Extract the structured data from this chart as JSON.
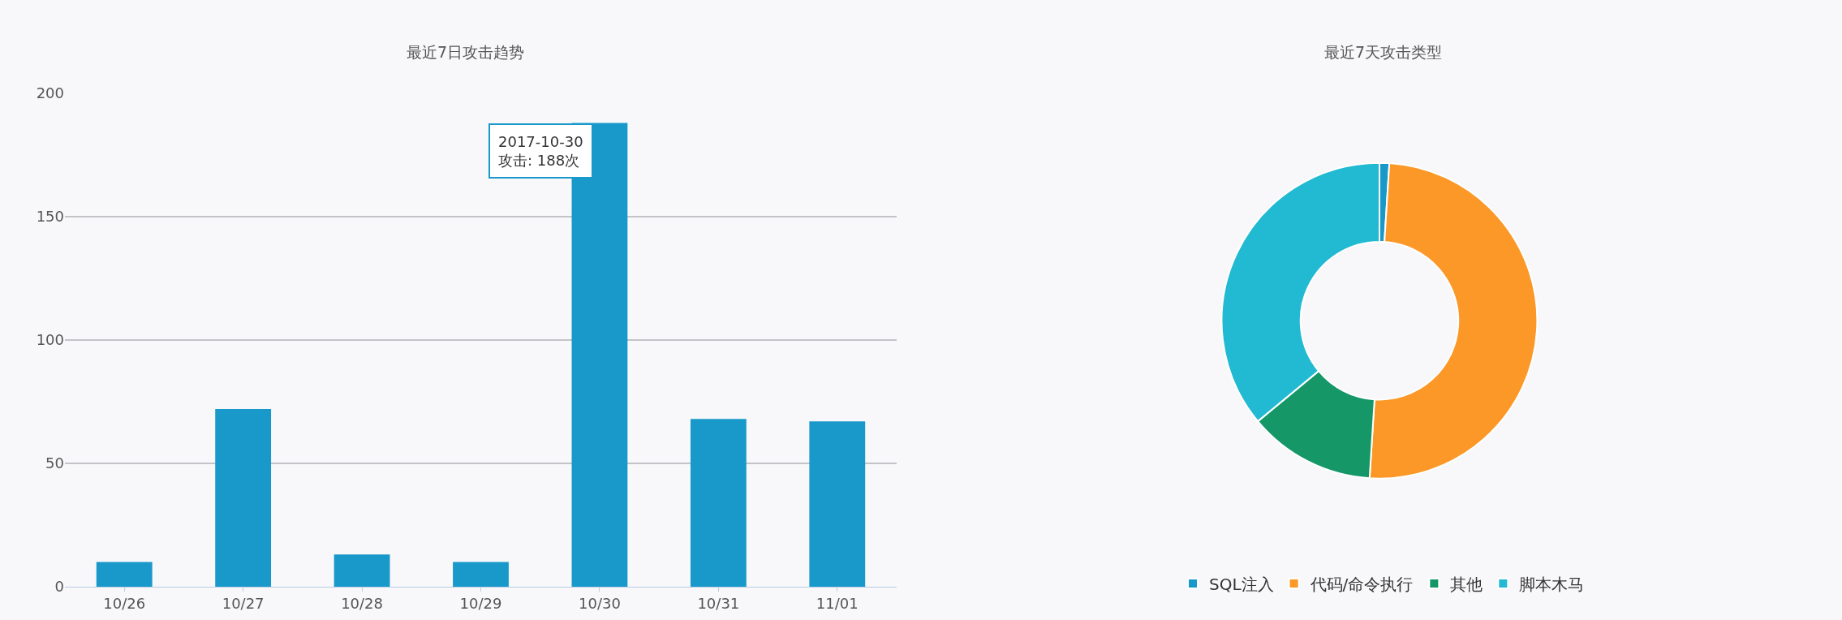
{
  "chart_data": [
    {
      "type": "bar",
      "title": "最近7日攻击趋势",
      "categories": [
        "10/26",
        "10/27",
        "10/28",
        "10/29",
        "10/30",
        "10/31",
        "11/01"
      ],
      "values": [
        10,
        72,
        13,
        10,
        188,
        68,
        67
      ],
      "color": "#1899ca",
      "ylim": [
        0,
        200
      ],
      "yticks": [
        0,
        50,
        100,
        150,
        200
      ],
      "grid": "y",
      "legend": false,
      "annotations": [
        {
          "text": "2017-10-30\n攻击: 188次",
          "x": "10/30",
          "y": 188
        }
      ]
    },
    {
      "type": "donut",
      "title": "最近7天攻击类型",
      "categories": [
        "SQL注入",
        "代码/命令执行",
        "其他",
        "脚本木马"
      ],
      "values": [
        1,
        50,
        13,
        36
      ],
      "colors": [
        "#1899ca",
        "#fc9828",
        "#159768",
        "#21bad2"
      ],
      "legend": "bottom"
    }
  ]
}
